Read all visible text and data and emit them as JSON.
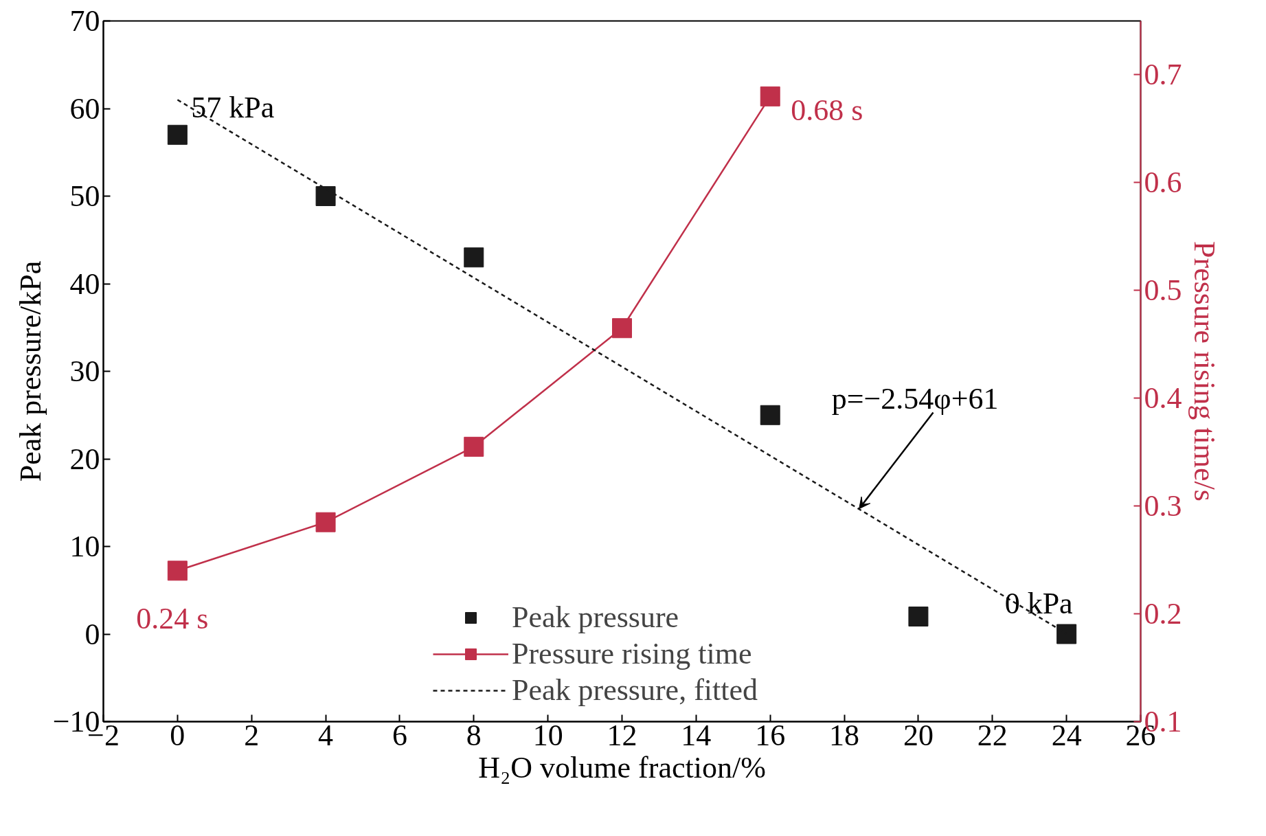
{
  "chart_data": {
    "type": "scatter",
    "xlabel": "H₂O volume fraction/%",
    "ylabel": "Peak pressure/kPa",
    "y2label": "Pressure rising time/s",
    "xlim": [
      -2,
      26
    ],
    "xticks": [
      {
        "value": -2,
        "label": "−2"
      },
      0,
      2,
      4,
      6,
      8,
      10,
      12,
      14,
      16,
      18,
      20,
      22,
      24,
      26
    ],
    "ylim": [
      -10,
      70
    ],
    "yticks": [
      {
        "value": -10,
        "label": "−10"
      },
      0,
      10,
      20,
      30,
      40,
      50,
      60,
      70
    ],
    "y2lim": [
      0.1,
      0.75
    ],
    "y2ticks": [
      0.1,
      0.2,
      0.3,
      0.4,
      0.5,
      0.6,
      0.7
    ],
    "series": [
      {
        "name": "Peak pressure",
        "color": "#1a1a1a",
        "marker": "square",
        "x": [
          0,
          4,
          8,
          16,
          20,
          24
        ],
        "values": [
          57,
          50,
          43,
          25,
          2,
          0
        ]
      },
      {
        "name": "Pressure rising time",
        "type": "line",
        "axis": "y2",
        "color": "#c0304a",
        "marker": "square",
        "x": [
          0,
          4,
          8,
          12,
          16
        ],
        "values": [
          0.24,
          0.285,
          0.355,
          0.465,
          0.68
        ]
      },
      {
        "name": "Peak pressure, fitted",
        "type": "line",
        "color": "#1a1a1a",
        "marker": "none",
        "line_style": "dashed",
        "x": [
          0,
          24
        ],
        "values": [
          61,
          0.04
        ]
      }
    ],
    "annotations": [
      {
        "text": "57 kPa",
        "x": 0,
        "y": 57
      },
      {
        "text": "0 kPa",
        "x": 24,
        "y": 0
      },
      "0.68 s",
      "0.24 s",
      {
        "text": "p=−2.54φ+61",
        "x": 18.4,
        "y": 14.3
      }
    ],
    "legend": "bottom",
    "grid": false
  }
}
